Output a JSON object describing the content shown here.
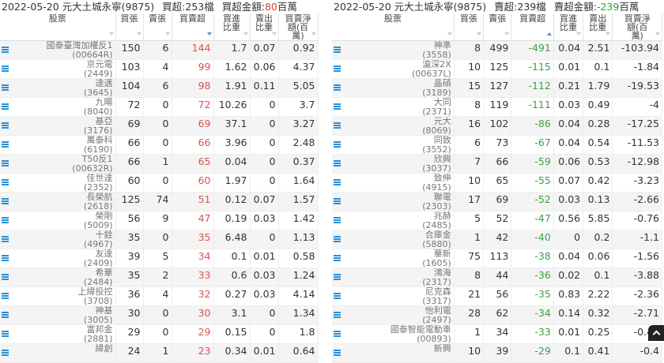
{
  "headers": {
    "stock": "股票",
    "buy": "買張",
    "sell": "賣張",
    "net": "買賣超",
    "buy_ratio": "買進比重",
    "sell_ratio": "賣出比重",
    "amount": "買賣淨額(百萬)"
  },
  "left": {
    "date": "2022-05-20 元大土城永寧(9875)",
    "count_label": "買超:253檔",
    "amount_label": "買超金額:",
    "amount_value": "80",
    "amount_unit": "百萬",
    "sort": "desc",
    "rows": [
      [
        "國泰臺灣加權反1",
        "(00664R)",
        150,
        6,
        144,
        1.7,
        0.07,
        0.92
      ],
      [
        "京元電",
        "(2449)",
        103,
        4,
        99,
        1.62,
        0.06,
        4.37
      ],
      [
        "達邁",
        "(3645)",
        104,
        6,
        98,
        1.91,
        0.11,
        5.05
      ],
      [
        "九暘",
        "(8040)",
        72,
        0,
        72,
        10.26,
        0,
        3.7
      ],
      [
        "基亞",
        "(3176)",
        69,
        0,
        69,
        37.1,
        0,
        3.27
      ],
      [
        "萬泰科",
        "(6190)",
        66,
        0,
        66,
        3.96,
        0,
        2.48
      ],
      [
        "T50反1",
        "(00632R)",
        66,
        1,
        65,
        0.04,
        0,
        0.37
      ],
      [
        "佳世達",
        "(2352)",
        60,
        0,
        60,
        1.97,
        0,
        1.64
      ],
      [
        "長榮航",
        "(2618)",
        125,
        74,
        51,
        0.12,
        0.07,
        1.57
      ],
      [
        "榮剛",
        "(5009)",
        56,
        9,
        47,
        0.19,
        0.03,
        1.42
      ],
      [
        "十銓",
        "(4967)",
        35,
        0,
        35,
        6.48,
        0,
        1.13
      ],
      [
        "友達",
        "(2409)",
        39,
        5,
        34,
        0.1,
        0.01,
        0.58
      ],
      [
        "希華",
        "(2484)",
        35,
        2,
        33,
        0.6,
        0.03,
        1.24
      ],
      [
        "上緯投控",
        "(3708)",
        36,
        4,
        32,
        0.27,
        0.03,
        4.14
      ],
      [
        "神基",
        "(3005)",
        30,
        0,
        30,
        3.1,
        0,
        1.34
      ],
      [
        "富邦金",
        "(2881)",
        29,
        0,
        29,
        0.15,
        0,
        1.8
      ],
      [
        "緯創",
        "",
        24,
        1,
        23,
        0.34,
        0.01,
        0.64
      ]
    ]
  },
  "right": {
    "date": "2022-05-20 元大土城永寧(9875)",
    "count_label": "賣超:239檔",
    "amount_label": "賣超金額:",
    "amount_value": "-239",
    "amount_unit": "百萬",
    "sort": "asc",
    "rows": [
      [
        "神準",
        "(3558)",
        8,
        499,
        -491,
        0.04,
        2.51,
        -103.94
      ],
      [
        "滬深2X",
        "(00637L)",
        10,
        125,
        -115,
        0.01,
        0.1,
        -1.84
      ],
      [
        "晶碩",
        "(3189)",
        15,
        127,
        -112,
        0.21,
        1.79,
        -19.53
      ],
      [
        "大同",
        "(2371)",
        8,
        119,
        -111,
        0.03,
        0.49,
        -4
      ],
      [
        "元大",
        "(8069)",
        16,
        102,
        -86,
        0.04,
        0.28,
        -17.25
      ],
      [
        "同致",
        "(3552)",
        6,
        73,
        -67,
        0.04,
        0.54,
        -11.53
      ],
      [
        "欣興",
        "(3037)",
        7,
        66,
        -59,
        0.06,
        0.53,
        -12.98
      ],
      [
        "致伸",
        "(4915)",
        10,
        65,
        -55,
        0.07,
        0.42,
        -3.23
      ],
      [
        "聯電",
        "(2303)",
        17,
        69,
        -52,
        0.03,
        0.13,
        -2.66
      ],
      [
        "兆赫",
        "(2485)",
        5,
        52,
        -47,
        0.56,
        5.85,
        -0.76
      ],
      [
        "合庫金",
        "(5880)",
        1,
        42,
        -40,
        0,
        0.2,
        -1.1
      ],
      [
        "華新",
        "(1605)",
        75,
        113,
        -38,
        0.04,
        0.06,
        -1.56
      ],
      [
        "鴻海",
        "(2317)",
        8,
        44,
        -36,
        0.02,
        0.1,
        -3.88
      ],
      [
        "尼克森",
        "(3317)",
        21,
        56,
        -35,
        0.83,
        2.22,
        -2.36
      ],
      [
        "怡利電",
        "(2497)",
        28,
        62,
        -34,
        0.14,
        0.32,
        -2.71
      ],
      [
        "國泰智能電動車",
        "(00893)",
        1,
        34,
        -33,
        0.01,
        0.25,
        -0.43
      ],
      [
        "新興",
        "",
        10,
        39,
        -29,
        0.1,
        0.41,
        "-0.4"
      ]
    ]
  },
  "icons": {
    "row": "list-icon",
    "scroll": "chevron-up-icon"
  },
  "colors": {
    "buy": "#d9534f",
    "sell": "#3fa03f"
  }
}
